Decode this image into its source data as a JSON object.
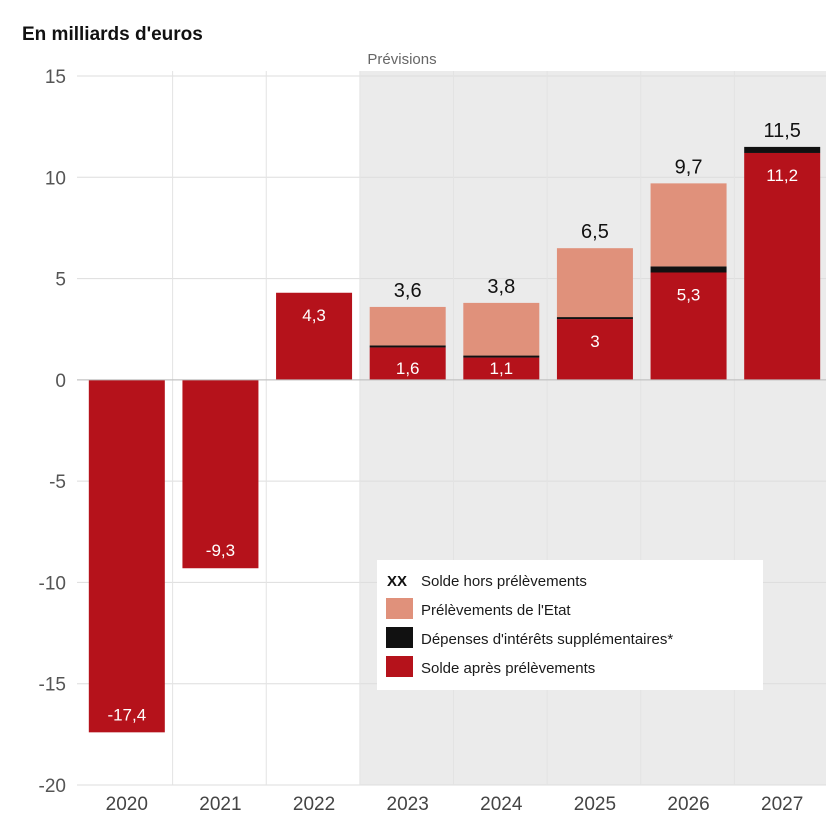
{
  "chart_data": {
    "type": "bar",
    "title": "En milliards d'euros",
    "forecast_label": "Prévisions",
    "forecast_start": "2023",
    "categories": [
      "2020",
      "2021",
      "2022",
      "2023",
      "2024",
      "2025",
      "2026",
      "2027"
    ],
    "series": [
      {
        "name": "Solde après prélèvements",
        "values": [
          -17.4,
          -9.3,
          4.3,
          1.6,
          1.1,
          3,
          5.3,
          11.2
        ],
        "color": "#b5121b"
      },
      {
        "name": "Dépenses d'intérêts supplémentaires*",
        "values": [
          0,
          0,
          0,
          0.1,
          0.1,
          0.1,
          0.3,
          0.3
        ],
        "color": "#111111"
      },
      {
        "name": "Prélèvements de l'Etat",
        "values": [
          0,
          0,
          0,
          1.9,
          2.6,
          3.4,
          4.1,
          0
        ],
        "color": "#e0917b"
      }
    ],
    "value_labels": [
      "-17,4",
      "-9,3",
      "4,3",
      "1,6",
      "1,1",
      "3",
      "5,3",
      "11,2"
    ],
    "total_labels": [
      "",
      "",
      "",
      "3,6",
      "3,8",
      "6,5",
      "9,7",
      "11,5"
    ],
    "ylim": [
      -20,
      15
    ],
    "yticks": [
      "15",
      "10",
      "5",
      "0",
      "-5",
      "-10",
      "-15",
      "-20"
    ],
    "ytick_values": [
      15,
      10,
      5,
      0,
      -5,
      -10,
      -15,
      -20
    ],
    "grid": true,
    "legend": {
      "placement": "bottom-right",
      "xx_marker": "XX",
      "items": [
        {
          "key": "total",
          "label": "Solde hors prélèvements"
        },
        {
          "key": "prelevements",
          "label": "Prélèvements de l'Etat",
          "color": "#e0917b"
        },
        {
          "key": "interets",
          "label": "Dépenses d'intérêts supplémentaires*",
          "color": "#111111"
        },
        {
          "key": "solde",
          "label": "Solde après prélèvements",
          "color": "#b5121b"
        }
      ]
    }
  }
}
